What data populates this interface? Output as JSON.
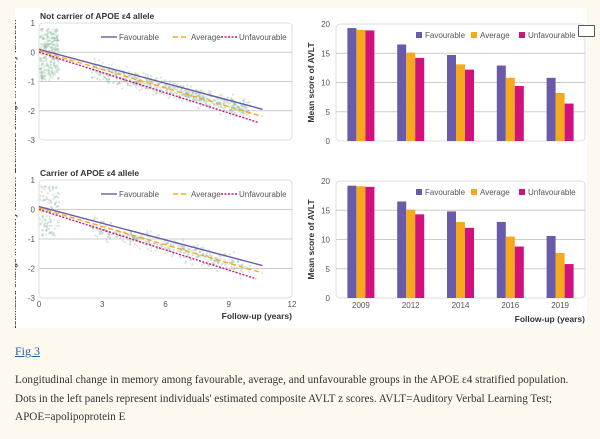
{
  "figure_link": "Fig 3",
  "caption": "Longitudinal change in memory among favourable, average, and unfavourable groups in the APOE ε4 stratified population. Dots in the left panels represent individuals' estimated composite AVLT z scores. AVLT=Auditory Verbal Learning Test; APOE=apolipoprotein E",
  "colors": {
    "favourable": "#6a5aaa",
    "average": "#f7a91c",
    "unfavourable": "#d0117e",
    "dots": "#8fb9a0"
  },
  "chart_data": [
    {
      "type": "line",
      "title": "Not carrier of APOE ε4 allele",
      "ylabel": "Estimated change in memory function",
      "xlabel": "",
      "xlim": [
        0,
        12
      ],
      "ylim": [
        -3,
        1
      ],
      "yticks": [
        1,
        0,
        -1,
        -2,
        -3
      ],
      "xticks": [],
      "grid": true,
      "legend": "top-right",
      "series": [
        {
          "name": "Favourable",
          "x": [
            0,
            10.6
          ],
          "y": [
            0.1,
            -1.95
          ],
          "style": "solid"
        },
        {
          "name": "Average",
          "x": [
            0,
            10.6
          ],
          "y": [
            0.05,
            -2.2
          ],
          "style": "dashed"
        },
        {
          "name": "Unfavourable",
          "x": [
            0,
            10.4
          ],
          "y": [
            0,
            -2.4
          ],
          "style": "dotted"
        }
      ]
    },
    {
      "type": "line",
      "title": "Carrier of APOE ε4 allele",
      "ylabel": "Estimated change in memory function",
      "xlabel": "Follow-up (years)",
      "xlim": [
        0,
        12
      ],
      "ylim": [
        -3,
        1
      ],
      "yticks": [
        1,
        0,
        -1,
        -2,
        -3
      ],
      "xticks": [
        0,
        3,
        6,
        9,
        12
      ],
      "grid": true,
      "legend": "top-right",
      "series": [
        {
          "name": "Favourable",
          "x": [
            0,
            10.6
          ],
          "y": [
            0.1,
            -1.9
          ],
          "style": "solid"
        },
        {
          "name": "Average",
          "x": [
            0,
            10.6
          ],
          "y": [
            0.05,
            -2.15
          ],
          "style": "dashed"
        },
        {
          "name": "Unfavourable",
          "x": [
            0,
            10.3
          ],
          "y": [
            0,
            -2.35
          ],
          "style": "dotted"
        }
      ]
    },
    {
      "type": "bar",
      "title": "",
      "ylabel": "Mean score of AVLT",
      "xlabel": "",
      "ylim": [
        0,
        20
      ],
      "yticks": [
        20,
        15,
        10,
        5,
        0
      ],
      "grid": true,
      "legend": "top-right",
      "categories": [
        "2009",
        "2012",
        "2014",
        "2016",
        "2019"
      ],
      "show_categories": false,
      "series": [
        {
          "name": "Favourable",
          "values": [
            19.3,
            16.5,
            14.7,
            12.9,
            10.8
          ]
        },
        {
          "name": "Average",
          "values": [
            19.0,
            15.1,
            13.1,
            10.8,
            8.2
          ]
        },
        {
          "name": "Unfavourable",
          "values": [
            18.9,
            14.2,
            12.2,
            9.4,
            6.4
          ]
        }
      ]
    },
    {
      "type": "bar",
      "title": "",
      "ylabel": "Mean score of AVLT",
      "xlabel": "Follow-up (years)",
      "ylim": [
        0,
        20
      ],
      "yticks": [
        20,
        15,
        10,
        5,
        0
      ],
      "grid": true,
      "legend": "top-right",
      "categories": [
        "2009",
        "2012",
        "2014",
        "2016",
        "2019"
      ],
      "show_categories": true,
      "series": [
        {
          "name": "Favourable",
          "values": [
            19.2,
            16.5,
            14.8,
            13.0,
            10.6
          ]
        },
        {
          "name": "Average",
          "values": [
            19.1,
            15.1,
            13.0,
            10.5,
            7.7
          ]
        },
        {
          "name": "Unfavourable",
          "values": [
            19.0,
            14.3,
            12.0,
            8.8,
            5.8
          ]
        }
      ]
    }
  ]
}
